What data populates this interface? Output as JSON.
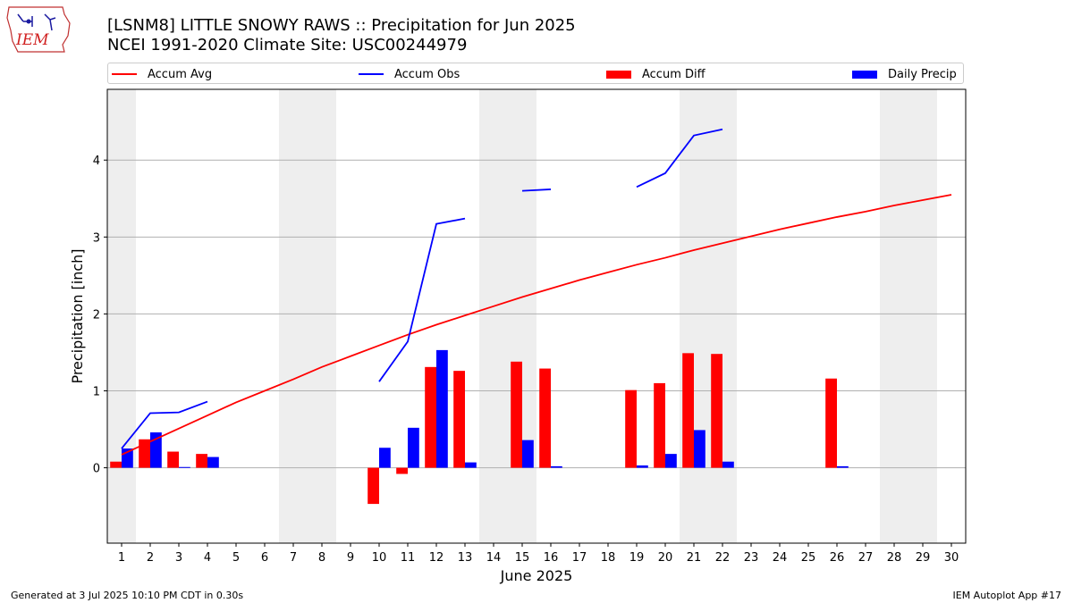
{
  "header": {
    "title_line1": "[LSNM8] LITTLE SNOWY RAWS :: Precipitation for Jun 2025",
    "title_line2": "NCEI 1991-2020 Climate Site: USC00244979",
    "logo_text": "IEM"
  },
  "legend": {
    "items": [
      {
        "label": "Accum Avg",
        "kind": "line",
        "color": "#ff0000"
      },
      {
        "label": "Accum Obs",
        "kind": "line",
        "color": "#0000ff"
      },
      {
        "label": "Accum Diff",
        "kind": "bar",
        "color": "#ff0000"
      },
      {
        "label": "Daily Precip",
        "kind": "bar",
        "color": "#0000ff"
      }
    ]
  },
  "footer": {
    "generated": "Generated at 3 Jul 2025 10:10 PM CDT in 0.30s",
    "app": "IEM Autoplot App #17"
  },
  "chart_data": {
    "type": "bar",
    "xlabel": "June 2025",
    "ylabel": "Precipitation [inch]",
    "ylim": [
      -0.98,
      4.92
    ],
    "yticks": [
      0,
      1,
      2,
      3,
      4
    ],
    "grid": true,
    "legend_position": "top",
    "weekend_shading": [
      1,
      7,
      8,
      14,
      15,
      21,
      22,
      28,
      29
    ],
    "x": [
      1,
      2,
      3,
      4,
      5,
      6,
      7,
      8,
      9,
      10,
      11,
      12,
      13,
      14,
      15,
      16,
      17,
      18,
      19,
      20,
      21,
      22,
      23,
      24,
      25,
      26,
      27,
      28,
      29,
      30
    ],
    "series": [
      {
        "name": "Accum Avg",
        "kind": "line",
        "color": "#ff0000",
        "values": [
          0.17,
          0.34,
          0.51,
          0.68,
          0.85,
          1.0,
          1.15,
          1.31,
          1.45,
          1.59,
          1.73,
          1.86,
          1.98,
          2.1,
          2.22,
          2.33,
          2.44,
          2.54,
          2.64,
          2.73,
          2.83,
          2.92,
          3.01,
          3.1,
          3.18,
          3.26,
          3.33,
          3.41,
          3.48,
          3.55
        ]
      },
      {
        "name": "Accum Obs",
        "kind": "line",
        "color": "#0000ff",
        "values": [
          0.25,
          0.71,
          0.72,
          0.86,
          null,
          null,
          null,
          null,
          null,
          1.12,
          1.64,
          3.17,
          3.24,
          null,
          3.6,
          3.62,
          null,
          null,
          3.65,
          3.83,
          4.32,
          4.4,
          null,
          null,
          null,
          null,
          null,
          null,
          null,
          null
        ]
      },
      {
        "name": "Accum Diff",
        "kind": "bar",
        "color": "#ff0000",
        "values": [
          0.08,
          0.37,
          0.21,
          0.18,
          0,
          0,
          0,
          0,
          0,
          -0.47,
          -0.08,
          1.31,
          1.26,
          0,
          1.38,
          1.29,
          0,
          0,
          1.01,
          1.1,
          1.49,
          1.48,
          0,
          0,
          0,
          1.16,
          0,
          0,
          0,
          0
        ]
      },
      {
        "name": "Daily Precip",
        "kind": "bar",
        "color": "#0000ff",
        "values": [
          0.25,
          0.46,
          0.01,
          0.14,
          0,
          0,
          0,
          0,
          0,
          0.26,
          0.52,
          1.53,
          0.07,
          0,
          0.36,
          0.02,
          0,
          0,
          0.03,
          0.18,
          0.49,
          0.08,
          0,
          0,
          0,
          0.02,
          0,
          0,
          0,
          0
        ]
      }
    ]
  }
}
